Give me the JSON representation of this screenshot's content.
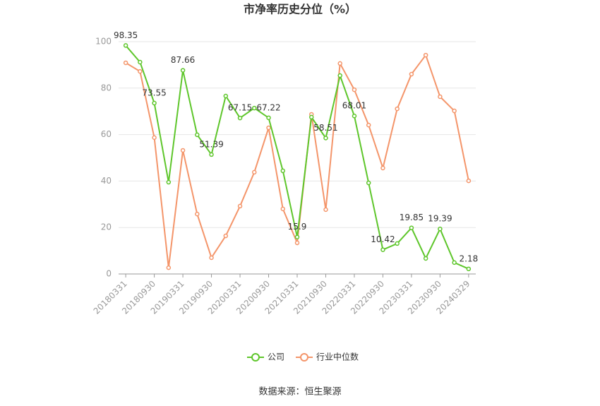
{
  "chart_data": {
    "type": "line",
    "title": "市净率历史分位（%）",
    "source": "数据来源：恒生聚源",
    "categories": [
      "20180331",
      null,
      "20180930",
      null,
      "20190331",
      null,
      "20190930",
      null,
      "20200331",
      null,
      "20200930",
      null,
      "20210331",
      null,
      "20210930",
      null,
      "20220331",
      null,
      "20220930",
      null,
      "20230331",
      null,
      "20230930",
      null,
      "20240329"
    ],
    "series": [
      {
        "name": "公司",
        "color": "#5ec62b",
        "values": [
          98.35,
          91.2,
          73.55,
          39.5,
          87.66,
          59.9,
          51.39,
          76.6,
          67.15,
          71.4,
          67.22,
          44.4,
          15.9,
          67.5,
          58.51,
          85.4,
          68.01,
          39.2,
          10.42,
          13.1,
          19.85,
          6.7,
          19.39,
          4.9,
          2.18
        ]
      },
      {
        "name": "行业中位数",
        "color": "#f4956a",
        "values": [
          90.9,
          87.2,
          58.7,
          2.7,
          53.2,
          25.8,
          7.0,
          16.4,
          29.2,
          43.8,
          62.9,
          28.0,
          13.4,
          68.7,
          27.7,
          90.6,
          79.3,
          64.1,
          45.6,
          71.1,
          86.0,
          94.2,
          76.3,
          70.2,
          40.1
        ]
      }
    ],
    "ylim": [
      0,
      100
    ],
    "yticks": [
      0,
      20,
      40,
      60,
      80,
      100
    ],
    "grid": true,
    "legend": "bottom"
  }
}
